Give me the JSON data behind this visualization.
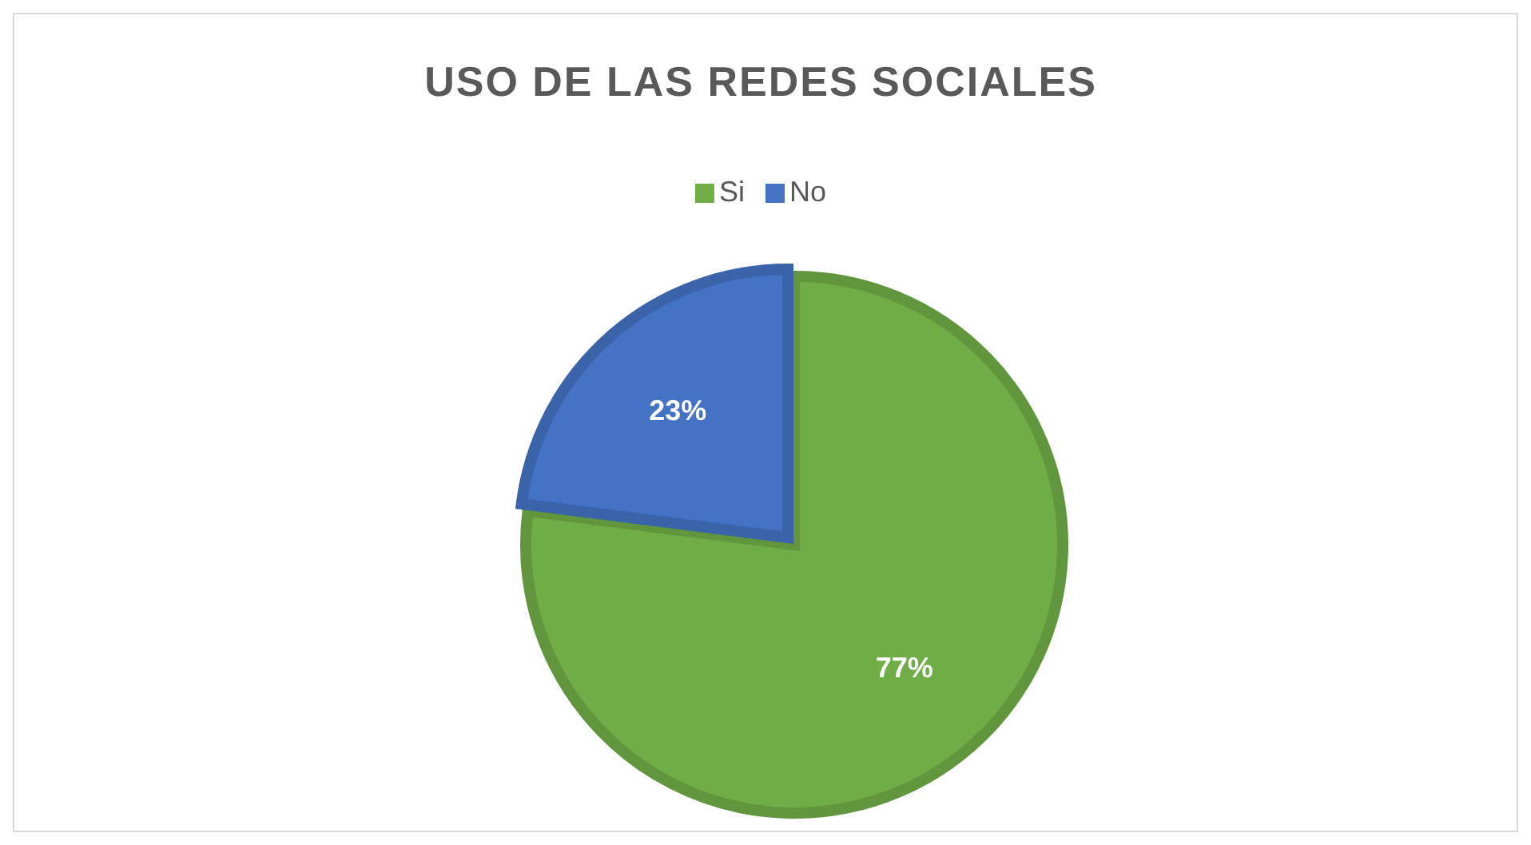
{
  "chart_data": {
    "type": "pie",
    "title": "USO DE LAS REDES SOCIALES",
    "categories": [
      "Si",
      "No"
    ],
    "values": [
      77,
      23
    ],
    "value_labels": [
      "77%",
      "23%"
    ],
    "colors": [
      "#70ad47",
      "#4472c4"
    ],
    "legend": "top"
  }
}
